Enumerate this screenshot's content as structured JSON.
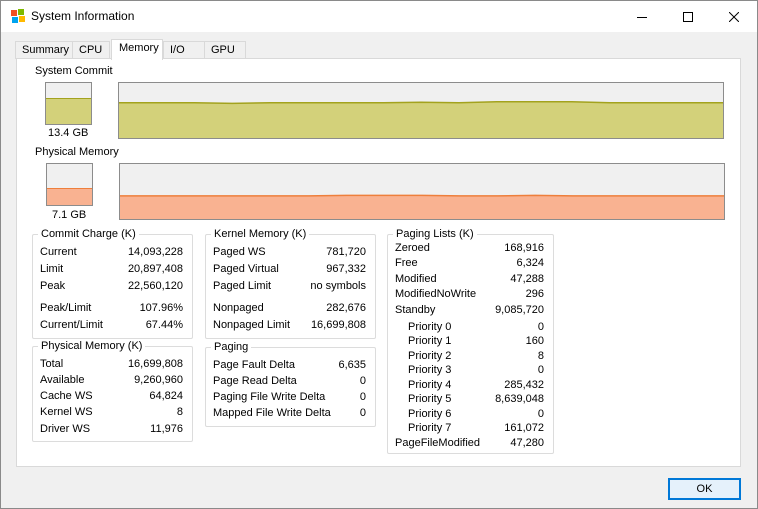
{
  "window": {
    "title": "System Information",
    "icon": "system-information-app-icon",
    "controls": {
      "minimize": "minimize-icon",
      "maximize": "maximize-icon",
      "close": "close-icon"
    }
  },
  "tabs": [
    {
      "label": "Summary",
      "active": false
    },
    {
      "label": "CPU",
      "active": false
    },
    {
      "label": "Memory",
      "active": true
    },
    {
      "label": "I/O",
      "active": false
    },
    {
      "label": "GPU",
      "active": false
    }
  ],
  "system_commit": {
    "label": "System Commit",
    "value": "13.4 GB",
    "level_fraction": 0.64,
    "fill_color": "#d3d17a",
    "line_color": "#a3a21e",
    "history_fraction": [
      0.64,
      0.64,
      0.64,
      0.63,
      0.64,
      0.64,
      0.64,
      0.64,
      0.65,
      0.64,
      0.66,
      0.66,
      0.66,
      0.64,
      0.64,
      0.64,
      0.64
    ]
  },
  "physical_memory_graph": {
    "label": "Physical Memory",
    "value": "7.1 GB",
    "level_fraction": 0.42,
    "fill_color": "#f9b291",
    "line_color": "#ee7f3c",
    "history_fraction": [
      0.42,
      0.42,
      0.42,
      0.42,
      0.42,
      0.42,
      0.43,
      0.43,
      0.43,
      0.42,
      0.42,
      0.43,
      0.42,
      0.42,
      0.42,
      0.42,
      0.42
    ]
  },
  "commit_charge": {
    "title": "Commit Charge (K)",
    "rows": [
      {
        "label": "Current",
        "value": "14,093,228"
      },
      {
        "label": "Limit",
        "value": "20,897,408"
      },
      {
        "label": "Peak",
        "value": "22,560,120"
      },
      {
        "label": "Peak/Limit",
        "value": "107.96%"
      },
      {
        "label": "Current/Limit",
        "value": "67.44%"
      }
    ]
  },
  "physical_memory": {
    "title": "Physical Memory (K)",
    "rows": [
      {
        "label": "Total",
        "value": "16,699,808"
      },
      {
        "label": "Available",
        "value": "9,260,960"
      },
      {
        "label": "Cache WS",
        "value": "64,824"
      },
      {
        "label": "Kernel WS",
        "value": "8"
      },
      {
        "label": "Driver WS",
        "value": "11,976"
      }
    ]
  },
  "kernel_memory": {
    "title": "Kernel Memory (K)",
    "rows": [
      {
        "label": "Paged WS",
        "value": "781,720"
      },
      {
        "label": "Paged Virtual",
        "value": "967,332"
      },
      {
        "label": "Paged Limit",
        "value": "no symbols"
      },
      {
        "label": "Nonpaged",
        "value": "282,676"
      },
      {
        "label": "Nonpaged Limit",
        "value": "16,699,808"
      }
    ]
  },
  "paging": {
    "title": "Paging",
    "rows": [
      {
        "label": "Page Fault Delta",
        "value": "6,635"
      },
      {
        "label": "Page Read Delta",
        "value": "0"
      },
      {
        "label": "Paging File Write Delta",
        "value": "0"
      },
      {
        "label": "Mapped File Write Delta",
        "value": "0"
      }
    ]
  },
  "paging_lists": {
    "title": "Paging Lists (K)",
    "rows": [
      {
        "label": "Zeroed",
        "value": "168,916"
      },
      {
        "label": "Free",
        "value": "6,324"
      },
      {
        "label": "Modified",
        "value": "47,288"
      },
      {
        "label": "ModifiedNoWrite",
        "value": "296"
      },
      {
        "label": "Standby",
        "value": "9,085,720"
      },
      {
        "label": "Priority 0",
        "value": "0"
      },
      {
        "label": "Priority 1",
        "value": "160"
      },
      {
        "label": "Priority 2",
        "value": "8"
      },
      {
        "label": "Priority 3",
        "value": "0"
      },
      {
        "label": "Priority 4",
        "value": "285,432"
      },
      {
        "label": "Priority 5",
        "value": "8,639,048"
      },
      {
        "label": "Priority 6",
        "value": "0"
      },
      {
        "label": "Priority 7",
        "value": "161,072"
      },
      {
        "label": "PageFileModified",
        "value": "47,280"
      }
    ]
  },
  "buttons": {
    "ok": "OK"
  }
}
